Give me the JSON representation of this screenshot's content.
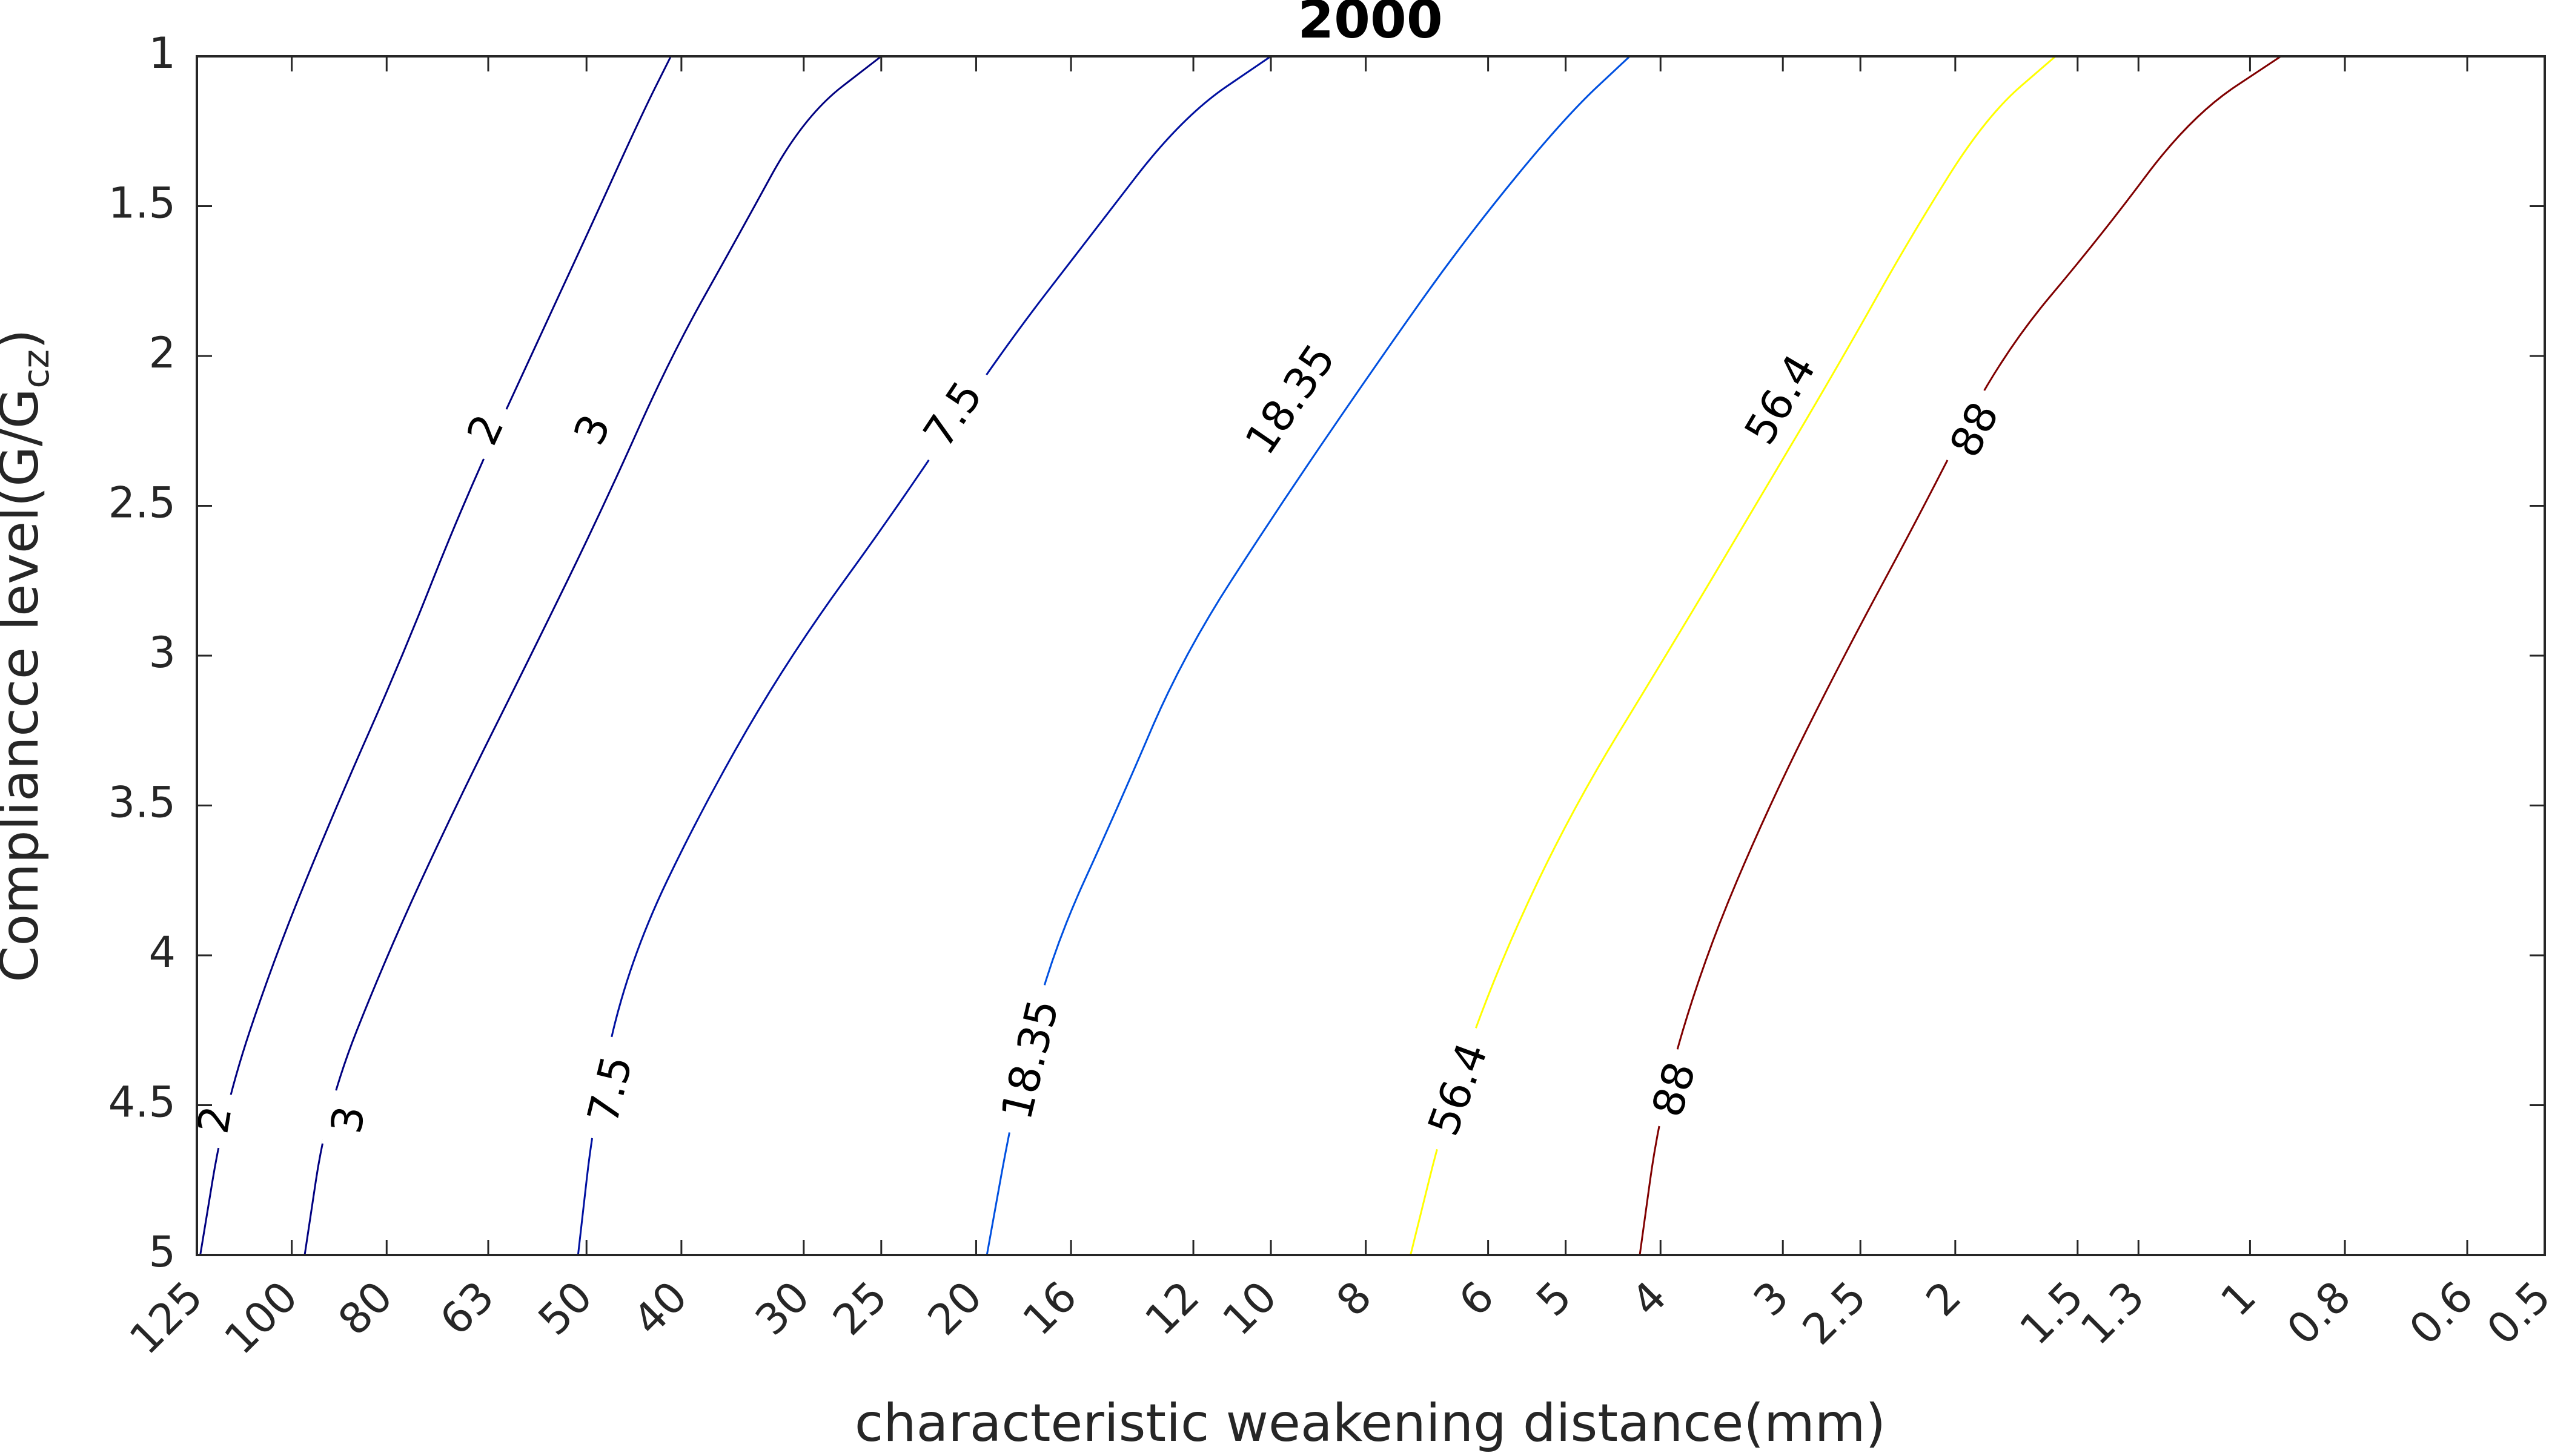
{
  "chart_data": {
    "type": "contour",
    "title": "2000",
    "xlabel": "characteristic weakening distance(mm)",
    "ylabel": {
      "main": "Compliancce level(G/G",
      "subscript": "cz",
      "suffix": ")"
    },
    "x_scale": "log",
    "x_reversed": true,
    "xlim": [
      0.5,
      125
    ],
    "ylim": [
      1,
      5
    ],
    "y_reversed": true,
    "grid": false,
    "x_ticks": [
      125,
      100,
      80,
      63,
      50,
      40,
      30,
      25,
      20,
      16,
      12,
      10,
      8,
      6,
      5,
      4,
      3,
      2.5,
      2,
      1.5,
      1.3,
      1,
      0.8,
      0.6,
      0.5
    ],
    "x_tick_labels": [
      "125",
      "100",
      "80",
      "63",
      "50",
      "40",
      "30",
      "25",
      "20",
      "16",
      "12",
      "10",
      "8",
      "6",
      "5",
      "4",
      "3",
      "2.5",
      "2",
      "1.5",
      "1.3",
      "1",
      "0.8",
      "0.6",
      "0.5"
    ],
    "y_ticks": [
      1,
      1.5,
      2,
      2.5,
      3,
      3.5,
      4,
      4.5,
      5
    ],
    "y_tick_labels": [
      "1",
      "1.5",
      "2",
      "2.5",
      "3",
      "3.5",
      "4",
      "4.5",
      "5"
    ],
    "series": [
      {
        "level": 2,
        "label": "2",
        "color": "#000080",
        "x": [
          41,
          44,
          50,
          57,
          67,
          77,
          90,
          104,
          117,
          124
        ],
        "y": [
          1,
          1.2,
          1.6,
          2,
          2.5,
          3,
          3.5,
          4,
          4.5,
          5
        ],
        "label_at": [
          [
            63,
            2.25
          ],
          [
            119,
            4.55
          ]
        ]
      },
      {
        "level": 3,
        "label": "3",
        "color": "#000080",
        "x": [
          25,
          30,
          35,
          41,
          48,
          57,
          68,
          80,
          92,
          97
        ],
        "y": [
          1,
          1.2,
          1.6,
          2,
          2.5,
          3,
          3.5,
          4,
          4.5,
          5
        ],
        "label_at": [
          [
            49,
            2.25
          ],
          [
            87,
            4.55
          ]
        ]
      },
      {
        "level": 7.5,
        "label": "7.5",
        "color": "#0010a0",
        "x": [
          10,
          12.3,
          15.3,
          19,
          24,
          31,
          38,
          45,
          49,
          51
        ],
        "y": [
          1,
          1.2,
          1.6,
          2,
          2.5,
          3,
          3.5,
          4,
          4.5,
          5
        ],
        "label_at": [
          [
            21,
            2.2
          ],
          [
            47,
            4.45
          ]
        ]
      },
      {
        "level": 18.35,
        "label": "18.35",
        "color": "#0050e0",
        "x": [
          4.3,
          5.0,
          6.3,
          7.7,
          9.8,
          12.3,
          14.3,
          16.8,
          18.3,
          19.5
        ],
        "y": [
          1,
          1.2,
          1.6,
          2,
          2.5,
          3,
          3.5,
          4,
          4.5,
          5
        ],
        "label_at": [
          [
            9.5,
            2.15
          ],
          [
            17.5,
            4.35
          ]
        ]
      },
      {
        "level": 56.4,
        "label": "56.4",
        "color": "#ffff00",
        "x": [
          1.58,
          1.86,
          2.22,
          2.6,
          3.2,
          3.95,
          4.9,
          5.8,
          6.6,
          7.2
        ],
        "y": [
          1,
          1.2,
          1.6,
          2,
          2.5,
          3,
          3.5,
          4,
          4.5,
          5
        ],
        "label_at": [
          [
            3.0,
            2.15
          ],
          [
            6.4,
            4.45
          ]
        ]
      },
      {
        "level": 88,
        "label": "88",
        "color": "#800000",
        "x": [
          0.93,
          1.15,
          1.42,
          1.8,
          2.15,
          2.6,
          3.1,
          3.6,
          4.0,
          4.2
        ],
        "y": [
          1,
          1.2,
          1.6,
          2,
          2.5,
          3,
          3.5,
          4,
          4.5,
          5
        ],
        "label_at": [
          [
            1.9,
            2.25
          ],
          [
            3.85,
            4.45
          ]
        ]
      }
    ]
  }
}
